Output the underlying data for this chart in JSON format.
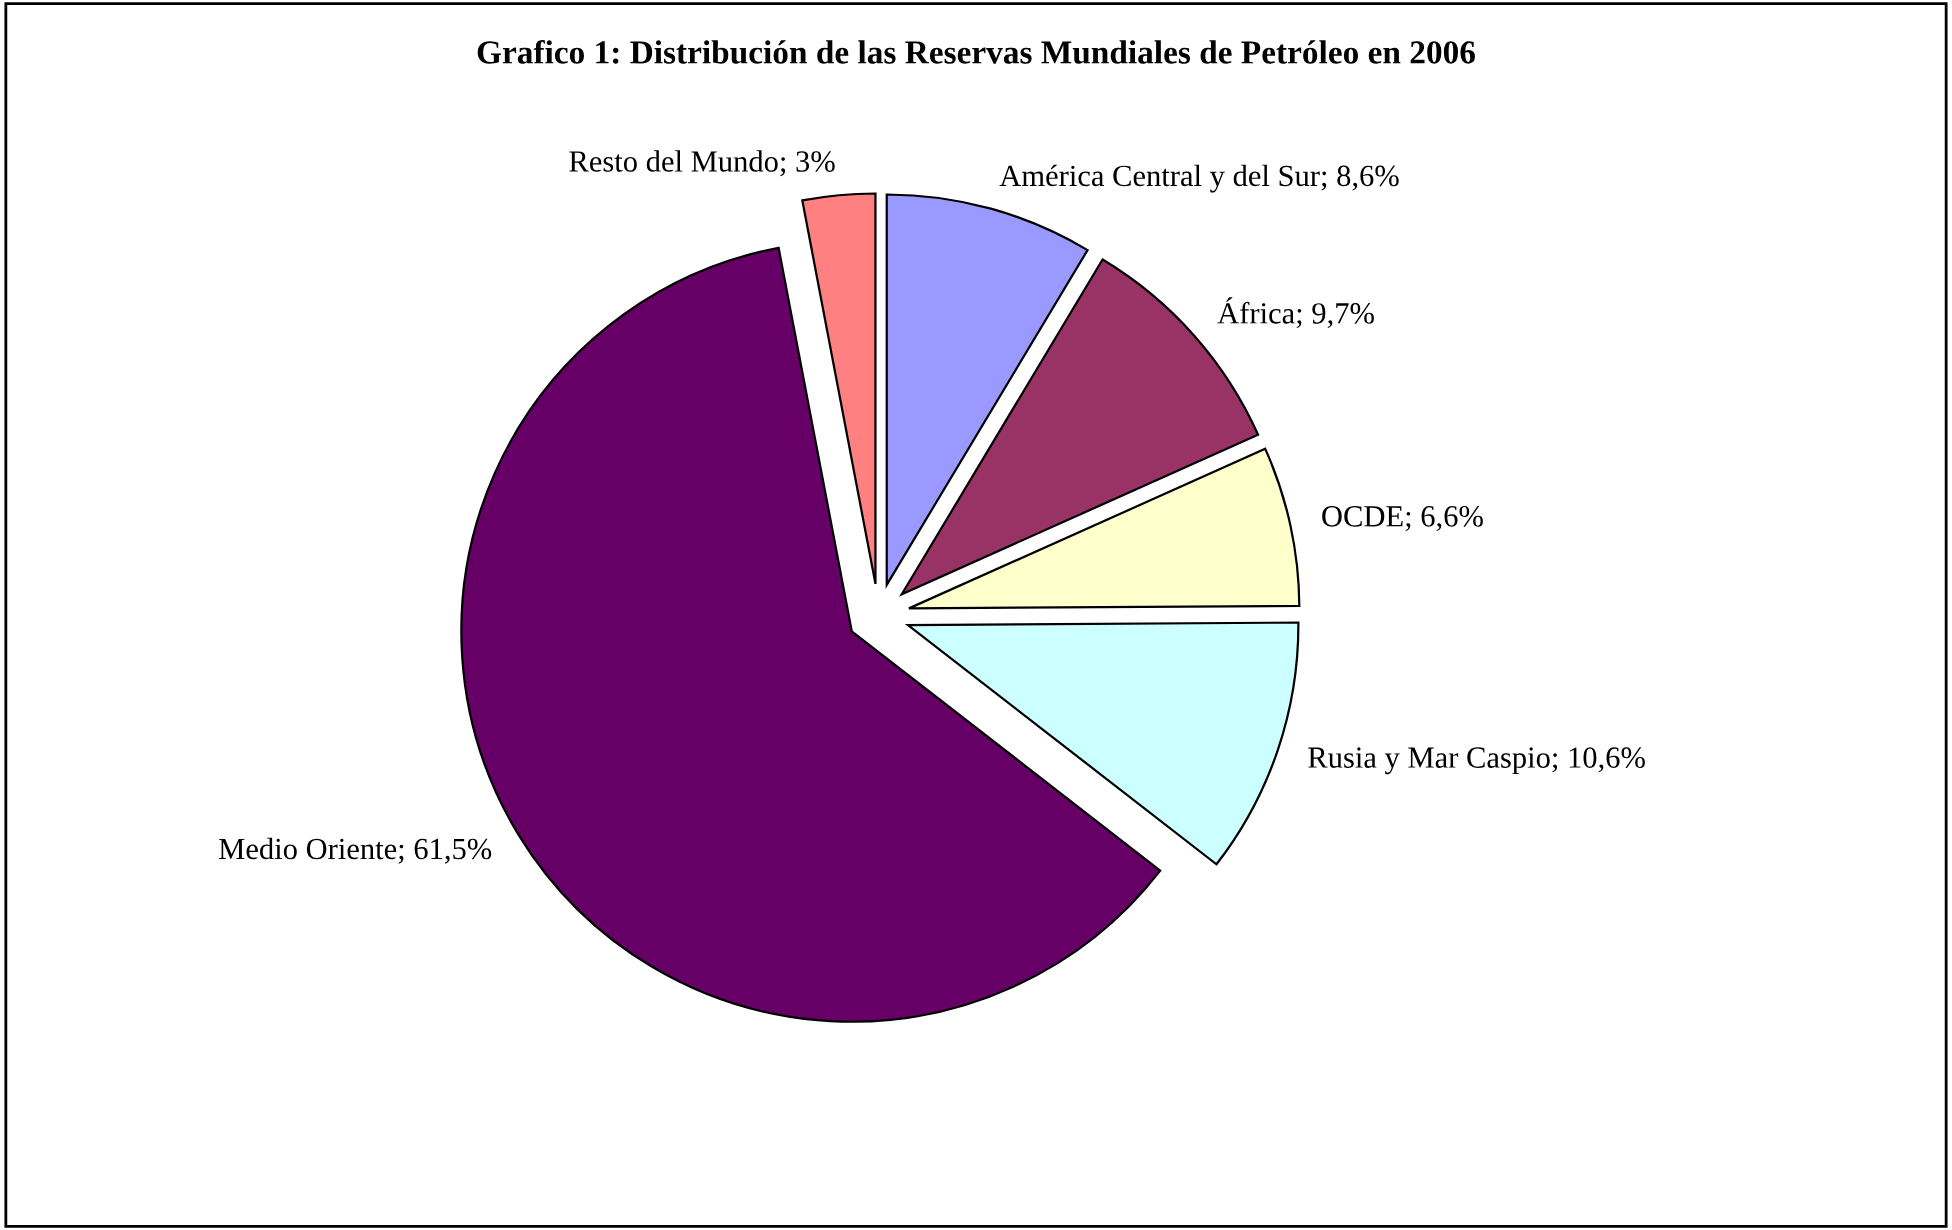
{
  "chart_data": {
    "type": "pie",
    "title": "Grafico 1: Distribución de las Reservas Mundiales de Petróleo en 2006",
    "categories": [
      "América Central y del Sur; 8,6%",
      "África; 9,7%",
      "OCDE; 6,6%",
      "Rusia y Mar Caspio; 10,6%",
      "Medio Oriente; 61,5%",
      "Resto del Mundo; 3%"
    ],
    "values": [
      8.6,
      9.7,
      6.6,
      10.6,
      61.5,
      3
    ],
    "colors": [
      "#9999ff",
      "#993366",
      "#ffffcc",
      "#ccffff",
      "#660066",
      "#ff8080"
    ],
    "legend": false
  }
}
